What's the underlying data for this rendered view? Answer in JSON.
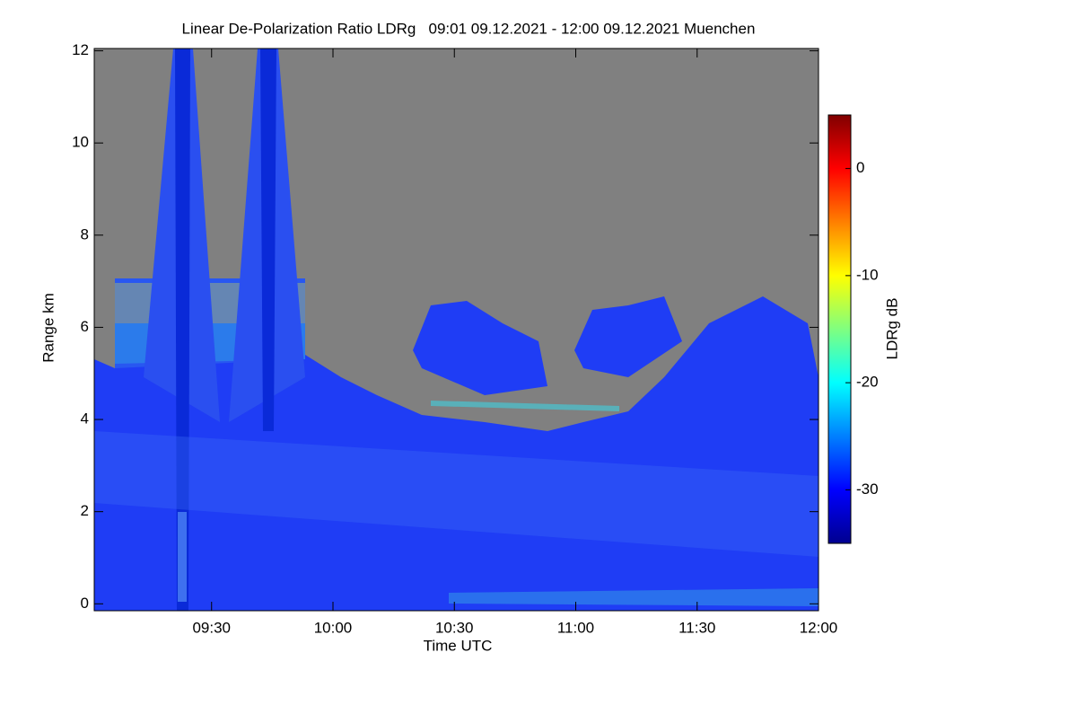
{
  "chart_data": {
    "type": "heatmap",
    "title": "Linear De-Polarization Ratio LDRg   09:01 09.12.2021 - 12:00 09.12.2021 Muenchen",
    "xlabel": "Time UTC",
    "ylabel": "Range km",
    "xlim": [
      541,
      720
    ],
    "xticks": [
      {
        "value": 570,
        "label": "09:30"
      },
      {
        "value": 600,
        "label": "10:00"
      },
      {
        "value": 630,
        "label": "10:30"
      },
      {
        "value": 660,
        "label": "11:00"
      },
      {
        "value": 690,
        "label": "11:30"
      },
      {
        "value": 720,
        "label": "12:00"
      }
    ],
    "ylim": [
      -0.15,
      12.05
    ],
    "yticks": [
      0,
      2,
      4,
      6,
      8,
      10,
      12
    ],
    "colorbar": {
      "label": "LDRg dB",
      "lim": [
        -35,
        5
      ],
      "ticks": [
        -30,
        -20,
        -10,
        0
      ],
      "colormap": "jet"
    }
  }
}
